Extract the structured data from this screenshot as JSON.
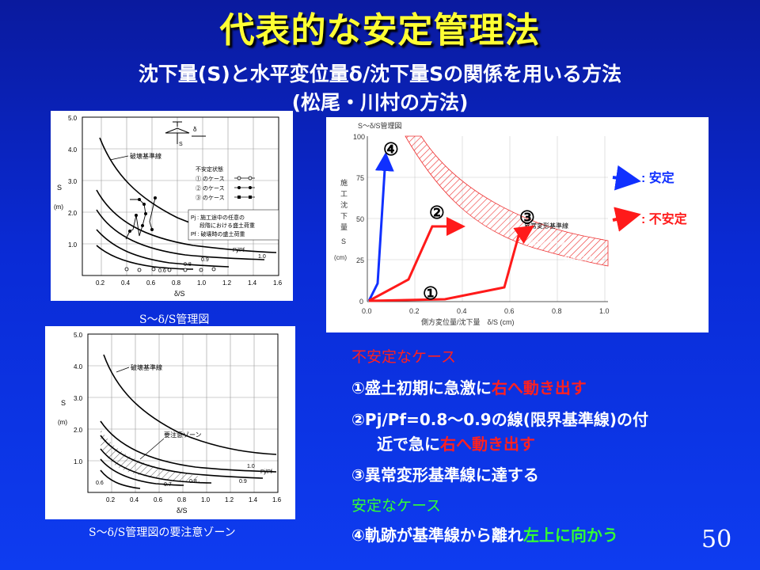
{
  "title": "代表的な安定管理法",
  "subtitle_1": "沈下量(S)と水平変位量δ/沈下量Sの関係を用いる方法",
  "subtitle_2": "(松尾・川村の方法)",
  "chart_top_left": {
    "caption": "S～δ/S管理図",
    "ylabel": "S",
    "yunit": "(m)",
    "xlabel": "δ/S",
    "yticks": [
      "5.0",
      "4.0",
      "3.0",
      "2.0",
      "1.0"
    ],
    "xticks": [
      "0.2",
      "0.4",
      "0.6",
      "0.8",
      "1.0",
      "1.2",
      "1.4",
      "1.6"
    ],
    "line_label": "破壊基準線",
    "legend_title": "不安定状態",
    "legend_items": [
      "① のケース",
      "② のケース",
      "③ のケース"
    ],
    "note_pj": "Pj : 施工途中の任意の",
    "note_pj2": "段階における盛土荷重",
    "note_pf": "Pf : 破壊時の盛土荷重",
    "curve_labels": [
      "Pj/Pf",
      "1.0",
      "0.9",
      "0.8",
      "0.6"
    ]
  },
  "chart_bottom_left": {
    "caption": "S～δ/S管理図の要注意ゾーン",
    "ylabel": "S",
    "yunit": "(m)",
    "xlabel": "δ/S",
    "yticks": [
      "5.0",
      "4.0",
      "3.0",
      "2.0",
      "1.0"
    ],
    "xticks": [
      "0.2",
      "0.4",
      "0.6",
      "0.8",
      "1.0",
      "1.2",
      "1.4",
      "1.6"
    ],
    "line_label": "破壊基準線",
    "zone_label": "要注意ゾーン",
    "curve_labels": [
      "1.0",
      "Pj/Pf",
      "0.9",
      "0.8",
      "0.7",
      "0.6"
    ]
  },
  "chart_right": {
    "title": "S～δ/S管理図",
    "yaxis_chars": [
      "施",
      "工",
      "沈",
      "下",
      "量",
      "S",
      "(cm)"
    ],
    "yticks": [
      "100",
      "75",
      "50",
      "25",
      "0"
    ],
    "xticks": [
      "0.0",
      "0.2",
      "0.4",
      "0.6",
      "0.8",
      "1.0"
    ],
    "xlabel": "側方変位量/沈下量　δ/S (cm)",
    "labels": [
      "異常変形基準線",
      "要注意ゾーン",
      "限界基準線"
    ],
    "markers": [
      "④",
      "②",
      "③",
      "①"
    ],
    "legend_stable": ": 安定",
    "legend_unstable": ": 不安定",
    "colors": {
      "stable": "#1030ff",
      "unstable": "#ff1a1a"
    }
  },
  "bullets": {
    "unstable_heading": "不安定なケース",
    "b1_a": "①盛土初期に急激に",
    "b1_b": "右へ動き出す",
    "b2_a": "②Pj/Pf=0.8～0.9の線(限界基準線)の付",
    "b2_b": "近で急に",
    "b2_c": "右へ動き出す",
    "b3": "③異常変形基準線に達する",
    "stable_heading": "安定なケース",
    "b4_a": "④軌跡が基準線から離れ",
    "b4_b": "左上に向かう"
  },
  "page_number": "50"
}
